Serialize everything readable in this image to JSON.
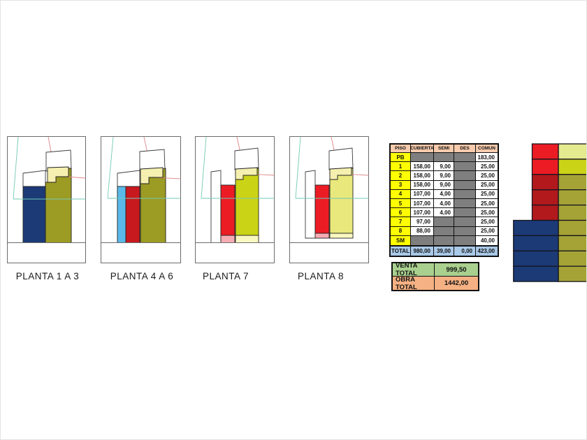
{
  "plans": [
    {
      "label": "PLANTA 1 A 3"
    },
    {
      "label": "PLANTA 4 A 6"
    },
    {
      "label": "PLANTA 7"
    },
    {
      "label": "PLANTA 8"
    }
  ],
  "table": {
    "headers": [
      "PISO",
      "CUBIERTA",
      "SEMI",
      "DES",
      "COMUN"
    ],
    "rows": [
      [
        "PB",
        "",
        "",
        "",
        "183,00"
      ],
      [
        "1",
        "158,00",
        "9,00",
        "",
        "25,00"
      ],
      [
        "2",
        "158,00",
        "9,00",
        "",
        "25,00"
      ],
      [
        "3",
        "158,00",
        "9,00",
        "",
        "25,00"
      ],
      [
        "4",
        "107,00",
        "4,00",
        "",
        "25,00"
      ],
      [
        "5",
        "107,00",
        "4,00",
        "",
        "25,00"
      ],
      [
        "6",
        "107,00",
        "4,00",
        "",
        "25,00"
      ],
      [
        "7",
        "97,00",
        "",
        "",
        "25,00"
      ],
      [
        "8",
        "88,00",
        "",
        "",
        "25,00"
      ],
      [
        "SM",
        "",
        "",
        "",
        "40,00"
      ]
    ],
    "total": [
      "TOTAL",
      "980,00",
      "39,00",
      "0,00",
      "423,00"
    ]
  },
  "summary": {
    "venta_label": "VENTA TOTAL",
    "venta_value": "999,50",
    "obra_label": "OBRA TOTAL",
    "obra_value": "1442,00"
  },
  "elevation": {
    "left": [
      "red",
      "red",
      "redDark",
      "redDark",
      "redDark",
      "navy",
      "navy",
      "navy",
      "navy"
    ],
    "right": [
      "yellowGreenPale",
      "yellowGreen",
      "oliveLight",
      "oliveLight",
      "oliveLight",
      "oliveLight",
      "oliveLight",
      "oliveLight",
      "oliveLight"
    ]
  },
  "colors": {
    "red": "#ec1c24",
    "redMid": "#c8191f",
    "redDark": "#b2191d",
    "navy": "#1b3a76",
    "lightBlue": "#5ab9e9",
    "olive": "#9c9b24",
    "oliveLight": "#a5a335",
    "yellowGreen": "#cad316",
    "yellowGreenPale": "#e4ea8e",
    "paleYellow": "#f5f0b0",
    "paleTower": "#e9e87c",
    "pink": "#f7abb3",
    "paleStrip": "#f9f8c0",
    "tealLine": "#72c9b4",
    "redLine": "#e08585",
    "tableHeader": "#f8cbad",
    "cellYellow": "#ffff00",
    "cellGray": "#7f7f7f",
    "totalBlue": "#a9c9e8",
    "ventaGreen": "#a9d08e",
    "obraSalmon": "#f5b183"
  }
}
